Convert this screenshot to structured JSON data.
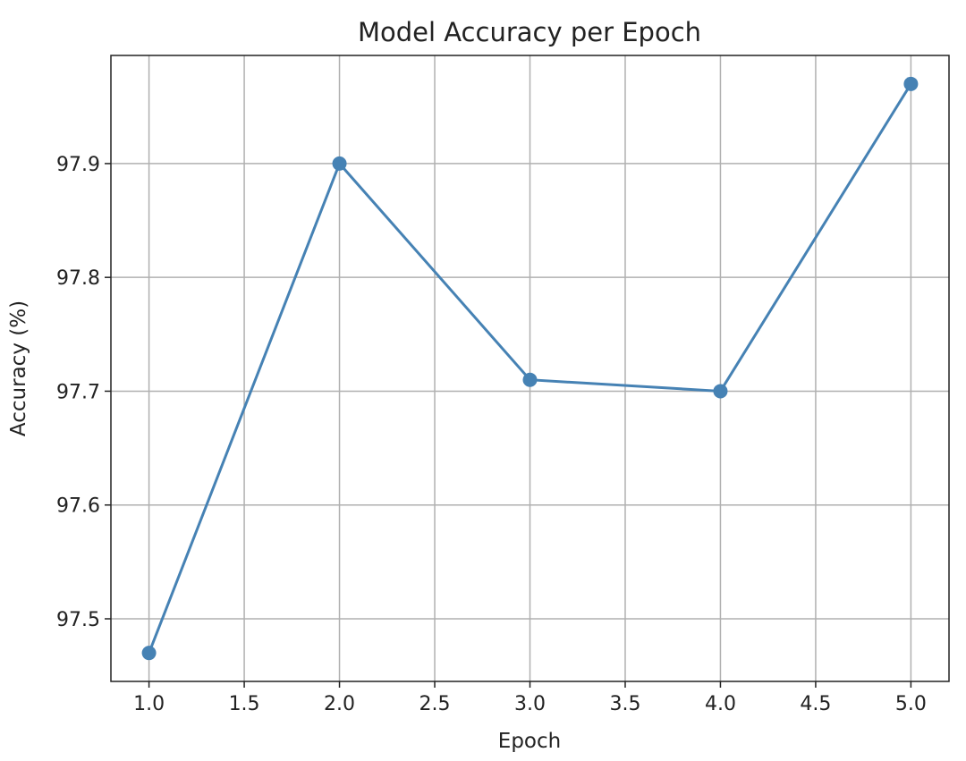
{
  "chart_data": {
    "type": "line",
    "title": "Model Accuracy per Epoch",
    "x_label": "Epoch",
    "y_label": "Accuracy (%)",
    "x": [
      1,
      2,
      3,
      4,
      5
    ],
    "series": [
      {
        "name": "Accuracy",
        "color": "#4682b4",
        "values": [
          97.47,
          97.9,
          97.71,
          97.7,
          97.97
        ]
      }
    ],
    "xlim": [
      0.8,
      5.2
    ],
    "xticks": [
      {
        "value": 1,
        "label": "1.0"
      },
      1.5,
      {
        "value": 2,
        "label": "2.0"
      },
      2.5,
      {
        "value": 3,
        "label": "3.0"
      },
      3.5,
      {
        "value": 4,
        "label": "4.0"
      },
      4.5,
      {
        "value": 5,
        "label": "5.0"
      }
    ],
    "ylim": [
      97.445,
      97.995
    ],
    "yticks": [
      97.5,
      97.6,
      97.7,
      97.8,
      97.9
    ],
    "grid": true,
    "legend": false
  }
}
